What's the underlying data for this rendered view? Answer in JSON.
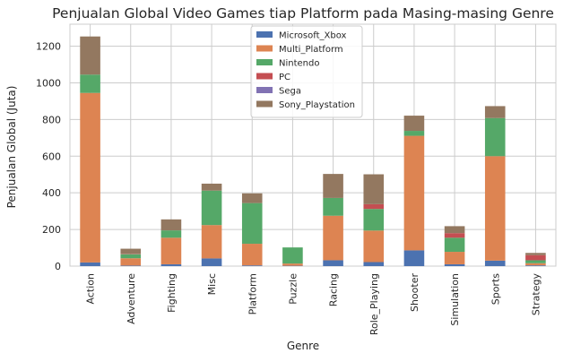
{
  "chart_data": {
    "type": "bar",
    "stacked": true,
    "title": "Penjualan Global Video Games tiap Platform pada Masing-masing Genre",
    "xlabel": "Genre",
    "ylabel": "Penjualan Global (Juta)",
    "ylim": [
      0,
      1320
    ],
    "yticks": [
      0,
      200,
      400,
      600,
      800,
      1000,
      1200
    ],
    "grid": true,
    "legend_position": "top-center",
    "categories": [
      "Action",
      "Adventure",
      "Fighting",
      "Misc",
      "Platform",
      "Puzzle",
      "Racing",
      "Role_Playing",
      "Shooter",
      "Simulation",
      "Sports",
      "Strategy"
    ],
    "series": [
      {
        "name": "Microsoft_Xbox",
        "color": "#4c72b0",
        "values": [
          20,
          3,
          10,
          42,
          4,
          2,
          32,
          22,
          86,
          10,
          30,
          4
        ]
      },
      {
        "name": "Multi_Platform",
        "color": "#dd8452",
        "values": [
          925,
          40,
          145,
          182,
          118,
          12,
          243,
          172,
          625,
          68,
          570,
          12
        ]
      },
      {
        "name": "Nintendo",
        "color": "#55a868",
        "values": [
          100,
          22,
          40,
          188,
          222,
          88,
          97,
          118,
          27,
          77,
          208,
          16
        ]
      },
      {
        "name": "PC",
        "color": "#c44e52",
        "values": [
          0,
          2,
          0,
          0,
          0,
          0,
          0,
          26,
          0,
          25,
          0,
          28
        ]
      },
      {
        "name": "Sega",
        "color": "#8172b3",
        "values": [
          0,
          0,
          0,
          0,
          0,
          0,
          0,
          0,
          0,
          0,
          0,
          0
        ]
      },
      {
        "name": "Sony_Playstation",
        "color": "#937860",
        "values": [
          208,
          28,
          60,
          38,
          53,
          0,
          131,
          163,
          83,
          38,
          65,
          12
        ]
      }
    ]
  }
}
